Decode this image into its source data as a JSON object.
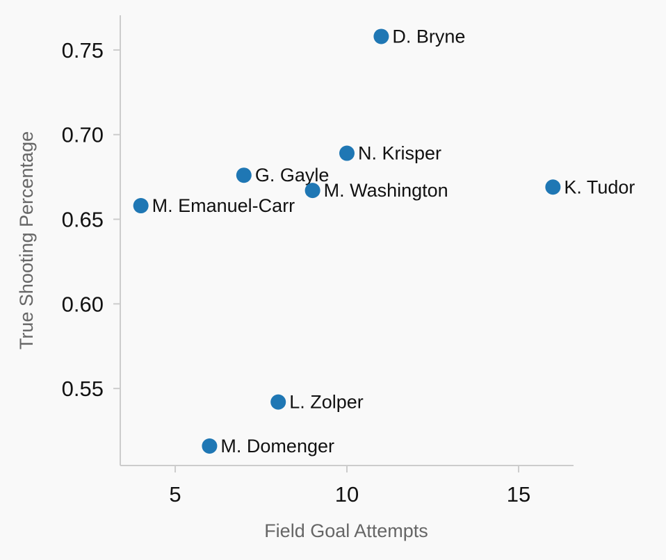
{
  "chart_data": {
    "type": "scatter",
    "title": "",
    "xlabel": "Field Goal Attempts",
    "ylabel": "True Shooting Percentage",
    "xlim": [
      3.4,
      16.6
    ],
    "ylim": [
      0.5045,
      0.7705
    ],
    "xticks": [
      {
        "value": 5,
        "label": "5"
      },
      {
        "value": 10,
        "label": "10"
      },
      {
        "value": 15,
        "label": "15"
      }
    ],
    "yticks": [
      {
        "value": 0.55,
        "label": "0.55"
      },
      {
        "value": 0.6,
        "label": "0.60"
      },
      {
        "value": 0.65,
        "label": "0.65"
      },
      {
        "value": 0.7,
        "label": "0.70"
      },
      {
        "value": 0.75,
        "label": "0.75"
      }
    ],
    "grid": false,
    "point_color": "#1f77b4",
    "points": [
      {
        "label": "D. Bryne",
        "x": 11,
        "y": 0.758
      },
      {
        "label": "N. Krisper",
        "x": 10,
        "y": 0.689
      },
      {
        "label": "G. Gayle",
        "x": 7,
        "y": 0.676
      },
      {
        "label": "M. Washington",
        "x": 9,
        "y": 0.667
      },
      {
        "label": "K. Tudor",
        "x": 16,
        "y": 0.669
      },
      {
        "label": "M. Emanuel-Carr",
        "x": 4,
        "y": 0.658
      },
      {
        "label": "L. Zolper",
        "x": 8,
        "y": 0.542
      },
      {
        "label": "M. Domenger",
        "x": 6,
        "y": 0.516
      }
    ]
  }
}
